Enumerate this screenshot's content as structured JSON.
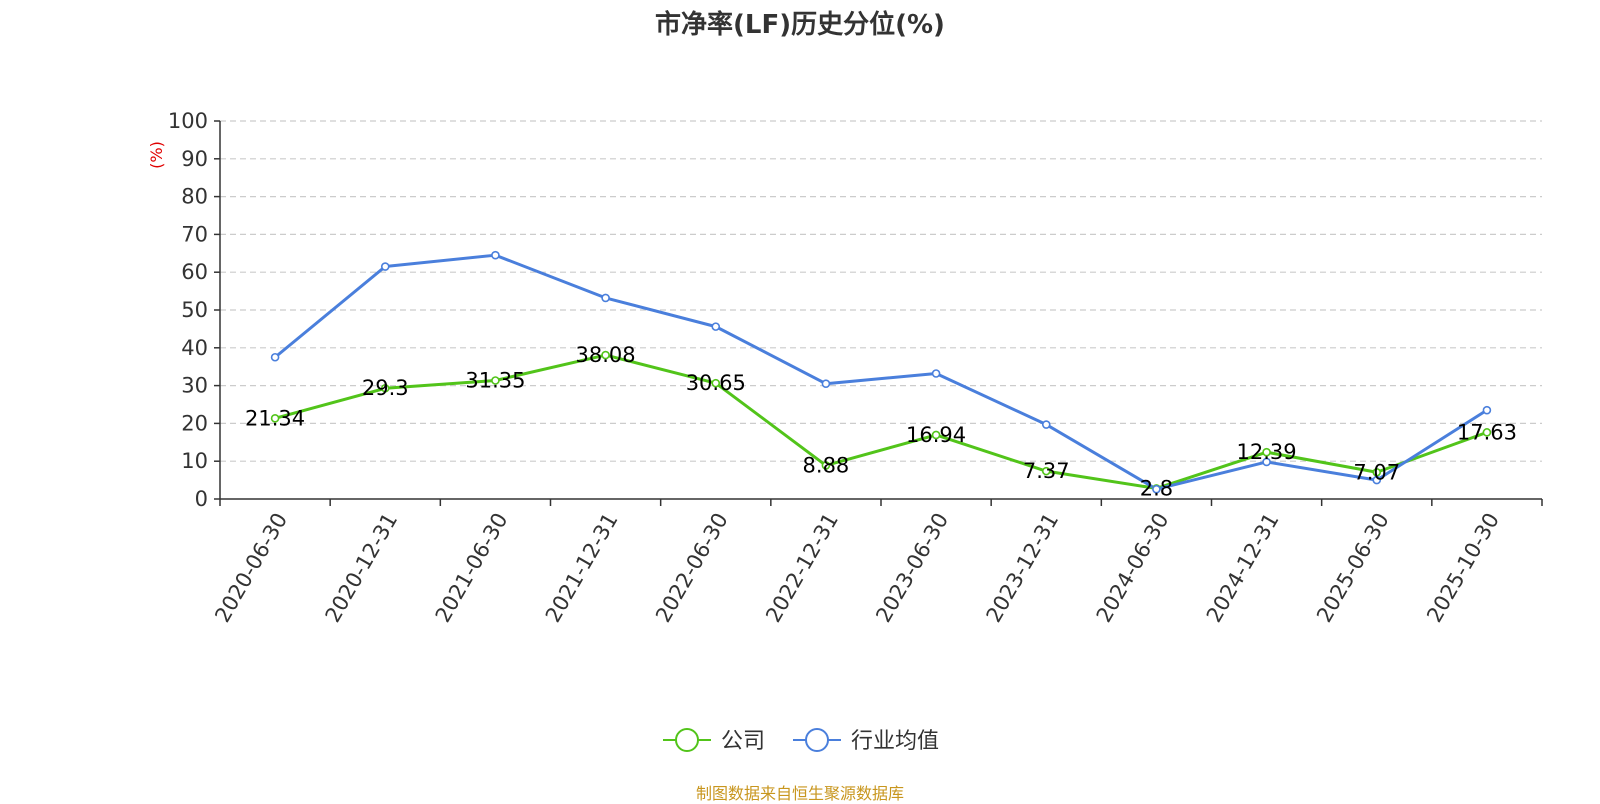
{
  "chart_data": {
    "type": "line",
    "title": "市净率(LF)历史分位(%)",
    "ylabel": "(%)",
    "ylim": [
      0,
      100
    ],
    "yticks": [
      0,
      10,
      20,
      30,
      40,
      50,
      60,
      70,
      80,
      90,
      100
    ],
    "grid": true,
    "legend_position": "bottom",
    "categories": [
      "2020-06-30",
      "2020-12-31",
      "2021-06-30",
      "2021-12-31",
      "2022-06-30",
      "2022-12-31",
      "2023-06-30",
      "2023-12-31",
      "2024-06-30",
      "2024-12-31",
      "2025-06-30",
      "2025-10-30"
    ],
    "series": [
      {
        "name": "公司",
        "color": "#52c41a",
        "show_labels": true,
        "values": [
          21.34,
          29.3,
          31.35,
          38.08,
          30.65,
          8.88,
          16.94,
          7.37,
          2.8,
          12.39,
          7.07,
          17.63
        ]
      },
      {
        "name": "行业均值",
        "color": "#4a7fdc",
        "show_labels": false,
        "values": [
          37.5,
          61.5,
          64.5,
          53.2,
          45.6,
          30.5,
          33.2,
          19.7,
          2.6,
          9.8,
          5.0,
          23.5
        ]
      }
    ]
  },
  "source": "制图数据来自恒生聚源数据库"
}
